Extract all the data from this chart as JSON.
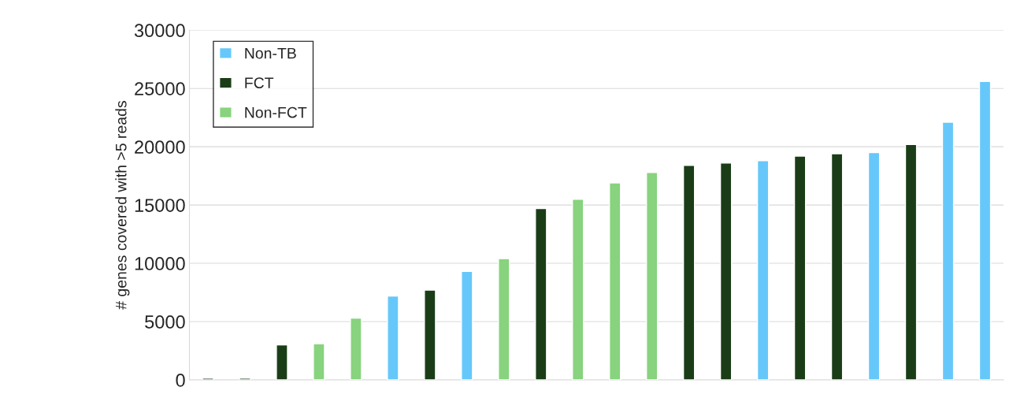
{
  "chart_data": {
    "type": "bar",
    "categories": [
      null,
      null,
      null,
      null,
      null,
      null,
      null,
      null,
      null,
      null,
      null,
      null,
      null,
      null,
      null,
      null,
      null,
      null,
      null,
      null,
      null,
      null
    ],
    "series": [
      {
        "name": "Non-TB",
        "color": "#66c8fa",
        "values": [
          null,
          null,
          null,
          null,
          null,
          7200,
          null,
          9300,
          null,
          null,
          null,
          null,
          null,
          null,
          null,
          18800,
          null,
          null,
          19500,
          null,
          22100,
          25600
        ]
      },
      {
        "name": "FCT",
        "color": "#1a3d17",
        "values": [
          150,
          150,
          3000,
          null,
          null,
          null,
          7700,
          null,
          null,
          14700,
          null,
          null,
          null,
          18400,
          18600,
          null,
          19200,
          19400,
          null,
          20200,
          null,
          null
        ]
      },
      {
        "name": "Non-FCT",
        "color": "#88d37e",
        "values": [
          null,
          null,
          null,
          3100,
          5300,
          null,
          null,
          null,
          10400,
          null,
          15500,
          16900,
          17800,
          null,
          null,
          null,
          null,
          null,
          null,
          null,
          null,
          null
        ]
      }
    ],
    "ylabel": "# genes covered with >5 reads",
    "ylim": [
      0,
      30000
    ],
    "yticks": [
      0,
      5000,
      10000,
      15000,
      20000,
      25000,
      30000
    ],
    "grid": "y",
    "legend": "top left",
    "tick_labels": "y"
  }
}
